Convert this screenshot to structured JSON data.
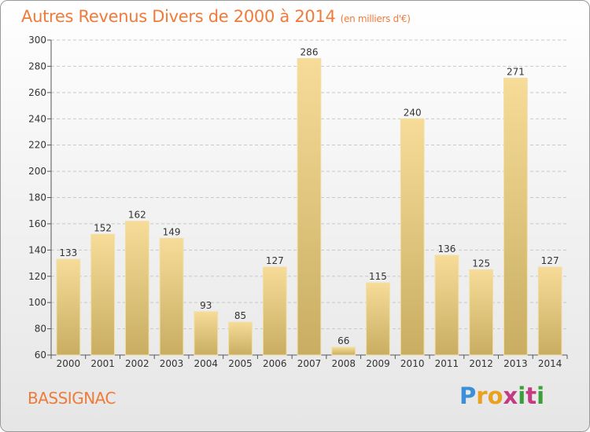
{
  "chart_data": {
    "type": "bar",
    "title": "Autres Revenus Divers de 2000 à 2014",
    "subtitle": "(en milliers d'€)",
    "categories": [
      "2000",
      "2001",
      "2002",
      "2003",
      "2004",
      "2005",
      "2006",
      "2007",
      "2008",
      "2009",
      "2010",
      "2011",
      "2012",
      "2013",
      "2014"
    ],
    "values": [
      133,
      152,
      162,
      149,
      93,
      85,
      127,
      286,
      66,
      115,
      240,
      136,
      125,
      271,
      127
    ],
    "ylim": [
      60,
      300
    ],
    "yticks": [
      60,
      80,
      100,
      120,
      140,
      160,
      180,
      200,
      220,
      240,
      260,
      280,
      300
    ],
    "grid": true,
    "bar_color": "#e8c97a",
    "title_color": "#ef7b3b"
  },
  "commune": "BASSIGNAC",
  "brand": {
    "letters": [
      "P",
      "r",
      "o",
      "x",
      "i",
      "t",
      "i"
    ],
    "colors": [
      "#3a8fd8",
      "#e8a21f",
      "#e8a21f",
      "#c43b83",
      "#3a9f3a",
      "#c43b83",
      "#3a9f3a"
    ]
  }
}
